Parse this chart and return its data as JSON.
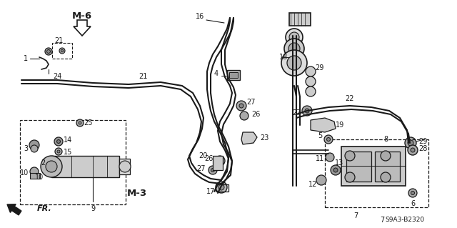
{
  "bg_color": "#ffffff",
  "line_color": "#1a1a1a",
  "text_color": "#1a1a1a",
  "fig_width": 6.4,
  "fig_height": 3.19,
  "dpi": 100
}
